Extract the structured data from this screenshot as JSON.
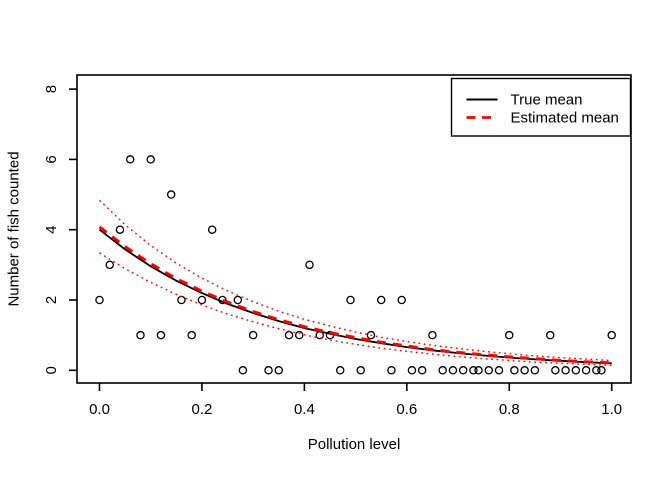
{
  "window": {
    "background": "#FFFFFF"
  },
  "chart_data": {
    "type": "scatter",
    "title": "",
    "xlabel": "Pollution level",
    "ylabel": "Number of fish counted",
    "xlim": [
      0,
      1
    ],
    "ylim": [
      0,
      8
    ],
    "grid": false,
    "x_ticks": [
      "0.0",
      "0.2",
      "0.4",
      "0.6",
      "0.8",
      "1.0"
    ],
    "x_tick_values": [
      0,
      0.2,
      0.4,
      0.6,
      0.8,
      1
    ],
    "y_ticks": [
      "0",
      "2",
      "4",
      "6",
      "8"
    ],
    "y_tick_values": [
      0,
      2,
      4,
      6,
      8
    ],
    "point_style": {
      "shape": "open-circle",
      "color": "#000000"
    },
    "points": [
      [
        0.06,
        6
      ],
      [
        0.1,
        6
      ],
      [
        0.14,
        5
      ],
      [
        0.04,
        4
      ],
      [
        0.22,
        4
      ],
      [
        0.02,
        3
      ],
      [
        0.41,
        3
      ],
      [
        0,
        2
      ],
      [
        0.16,
        2
      ],
      [
        0.2,
        2
      ],
      [
        0.24,
        2
      ],
      [
        0.27,
        2
      ],
      [
        0.49,
        2
      ],
      [
        0.55,
        2
      ],
      [
        0.59,
        2
      ],
      [
        0.08,
        1
      ],
      [
        0.12,
        1
      ],
      [
        0.18,
        1
      ],
      [
        0.3,
        1
      ],
      [
        0.37,
        1
      ],
      [
        0.39,
        1
      ],
      [
        0.43,
        1
      ],
      [
        0.45,
        1
      ],
      [
        0.53,
        1
      ],
      [
        0.65,
        1
      ],
      [
        0.8,
        1
      ],
      [
        0.88,
        1
      ],
      [
        1,
        1
      ],
      [
        0.28,
        0
      ],
      [
        0.33,
        0
      ],
      [
        0.35,
        0
      ],
      [
        0.47,
        0
      ],
      [
        0.51,
        0
      ],
      [
        0.57,
        0
      ],
      [
        0.61,
        0
      ],
      [
        0.63,
        0
      ],
      [
        0.67,
        0
      ],
      [
        0.69,
        0
      ],
      [
        0.71,
        0
      ],
      [
        0.73,
        0
      ],
      [
        0.74,
        0
      ],
      [
        0.76,
        0
      ],
      [
        0.78,
        0
      ],
      [
        0.81,
        0
      ],
      [
        0.83,
        0
      ],
      [
        0.85,
        0
      ],
      [
        0.89,
        0
      ],
      [
        0.91,
        0
      ],
      [
        0.93,
        0
      ],
      [
        0.95,
        0
      ],
      [
        0.97,
        0
      ],
      [
        0.98,
        0
      ]
    ],
    "curves": [
      {
        "name": "Upper confidence band",
        "color": "#FF0000",
        "style": "dotted",
        "x": [
          0,
          0.05,
          0.1,
          0.15,
          0.2,
          0.25,
          0.3,
          0.35,
          0.4,
          0.45,
          0.5,
          0.55,
          0.6,
          0.65,
          0.7,
          0.75,
          0.8,
          0.85,
          0.9,
          0.95,
          1
        ],
        "y": [
          4.84,
          4.14,
          3.55,
          3.05,
          2.62,
          2.26,
          1.95,
          1.68,
          1.45,
          1.26,
          1.09,
          0.94,
          0.82,
          0.71,
          0.62,
          0.54,
          0.47,
          0.41,
          0.36,
          0.32,
          0.28
        ]
      },
      {
        "name": "Lower confidence band",
        "color": "#FF0000",
        "style": "dotted",
        "x": [
          0,
          0.05,
          0.1,
          0.15,
          0.2,
          0.25,
          0.3,
          0.35,
          0.4,
          0.45,
          0.5,
          0.55,
          0.6,
          0.65,
          0.7,
          0.75,
          0.8,
          0.85,
          0.9,
          0.95,
          1
        ],
        "y": [
          3.34,
          2.89,
          2.5,
          2.16,
          1.86,
          1.6,
          1.38,
          1.18,
          1.01,
          0.86,
          0.74,
          0.63,
          0.54,
          0.46,
          0.39,
          0.33,
          0.28,
          0.23,
          0.2,
          0.17,
          0.14
        ]
      },
      {
        "name": "True mean",
        "color": "#000000",
        "style": "solid",
        "x": [
          0,
          0.05,
          0.1,
          0.15,
          0.2,
          0.25,
          0.3,
          0.35,
          0.4,
          0.45,
          0.5,
          0.55,
          0.6,
          0.65,
          0.7,
          0.75,
          0.8,
          0.85,
          0.9,
          0.95,
          1
        ],
        "y": [
          4,
          3.44,
          2.96,
          2.55,
          2.2,
          1.89,
          1.63,
          1.4,
          1.2,
          1.04,
          0.89,
          0.77,
          0.66,
          0.57,
          0.49,
          0.42,
          0.36,
          0.31,
          0.27,
          0.23,
          0.2
        ]
      },
      {
        "name": "Estimated mean",
        "color": "#FF0000",
        "style": "dashed",
        "x": [
          0,
          0.05,
          0.1,
          0.15,
          0.2,
          0.25,
          0.3,
          0.35,
          0.4,
          0.45,
          0.5,
          0.55,
          0.6,
          0.65,
          0.7,
          0.75,
          0.8,
          0.85,
          0.9,
          0.95,
          1
        ],
        "y": [
          4.08,
          3.52,
          3.03,
          2.61,
          2.25,
          1.94,
          1.67,
          1.44,
          1.24,
          1.07,
          0.93,
          0.8,
          0.69,
          0.59,
          0.51,
          0.44,
          0.38,
          0.33,
          0.28,
          0.24,
          0.21
        ]
      }
    ],
    "legend": {
      "position": "topright",
      "entries": [
        {
          "label": "True mean",
          "color": "#000000",
          "style": "solid"
        },
        {
          "label": "Estimated mean",
          "color": "#FF0000",
          "style": "dashed"
        }
      ]
    },
    "colors": {
      "foreground": "#000000",
      "accent_red": "#FF0000",
      "background": "#FFFFFF"
    }
  }
}
